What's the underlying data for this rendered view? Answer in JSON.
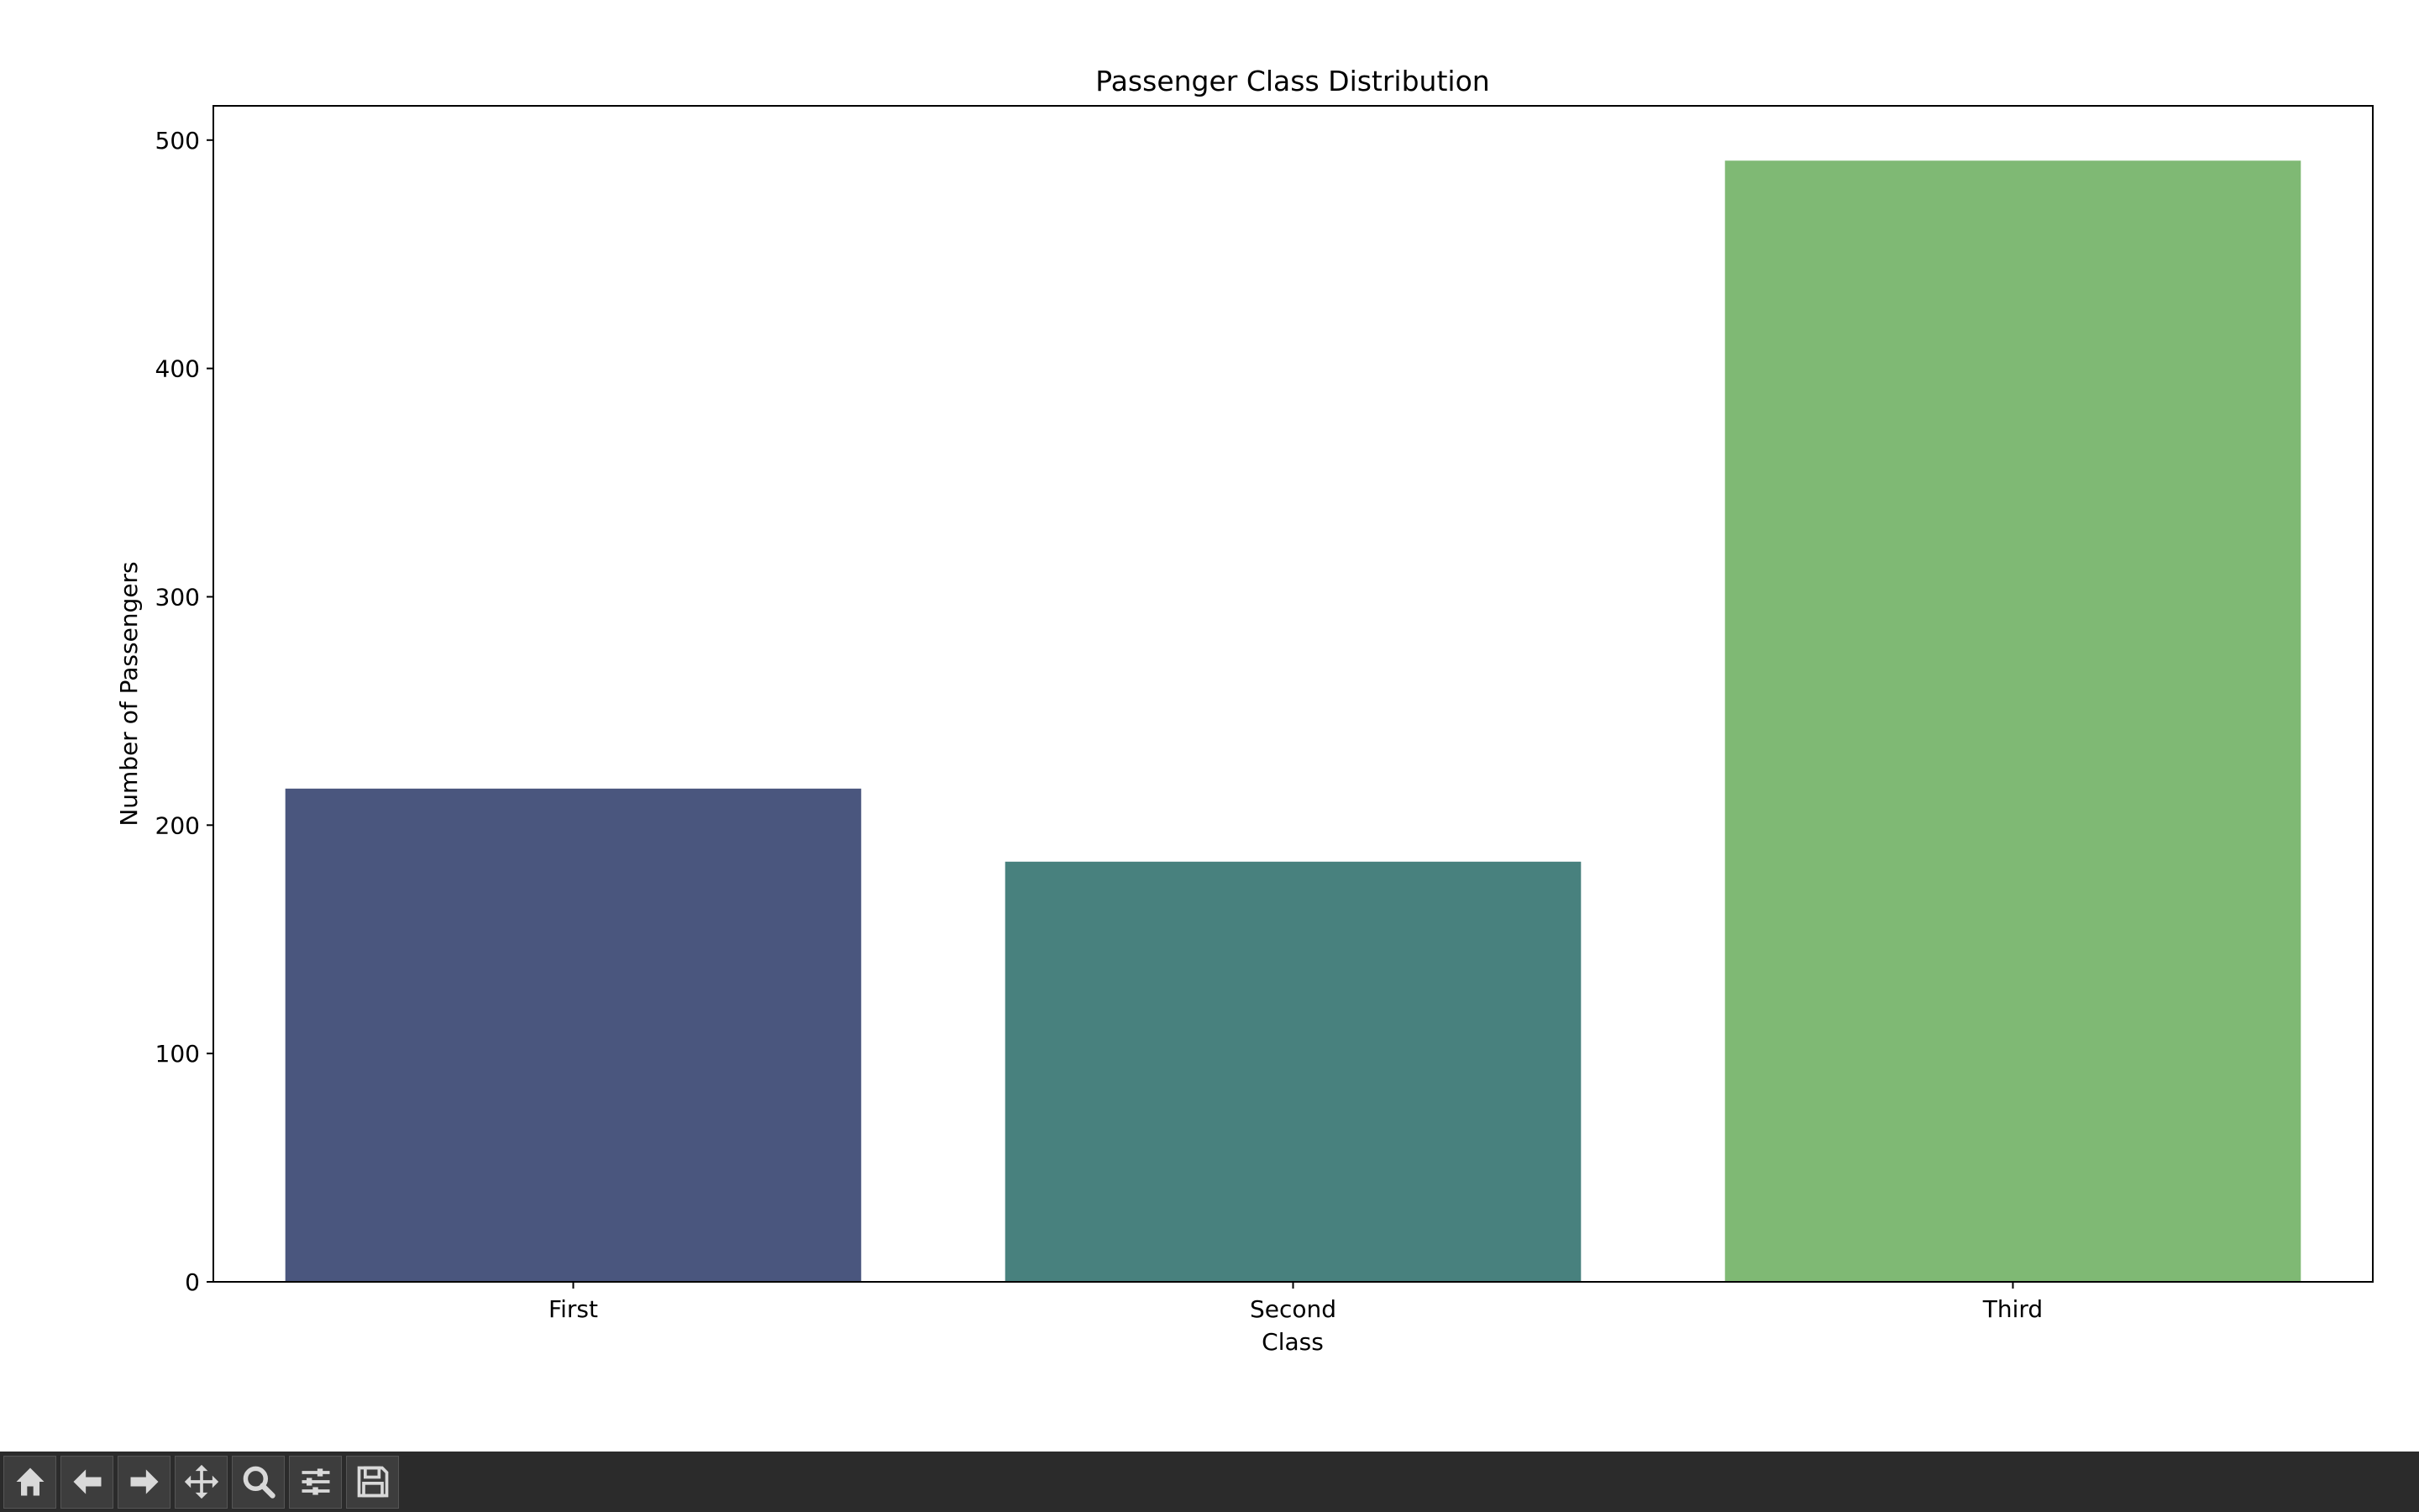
{
  "window": {
    "toolbar": {
      "buttons": [
        {
          "icon": "home-icon",
          "name": "home"
        },
        {
          "icon": "back-arrow-icon",
          "name": "back"
        },
        {
          "icon": "forward-arrow-icon",
          "name": "forward"
        },
        {
          "icon": "pan-move-icon",
          "name": "pan"
        },
        {
          "icon": "zoom-magnifier-icon",
          "name": "zoom"
        },
        {
          "icon": "configure-sliders-icon",
          "name": "configure"
        },
        {
          "icon": "save-floppy-icon",
          "name": "save"
        }
      ]
    }
  },
  "chart_data": {
    "type": "bar",
    "title": "Passenger Class Distribution",
    "xlabel": "Class",
    "ylabel": "Number of Passengers",
    "categories": [
      "First",
      "Second",
      "Third"
    ],
    "values": [
      216,
      184,
      491
    ],
    "colors": [
      "#4a567e",
      "#48817e",
      "#7fb974"
    ],
    "ylim": [
      0,
      515
    ],
    "yticks": [
      0,
      100,
      200,
      300,
      400,
      500
    ],
    "grid": false,
    "legend": false
  }
}
